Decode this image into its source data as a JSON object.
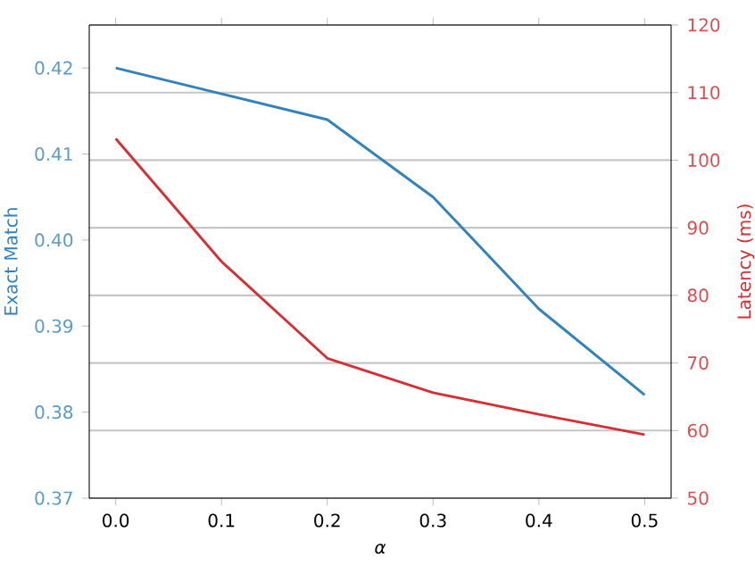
{
  "chart_data": {
    "type": "line",
    "xlabel": "α",
    "ylabel": "Exact Match",
    "y2label": "Latency (ms)",
    "x": [
      0,
      0.1,
      0.2,
      0.3,
      0.4,
      0.5
    ],
    "series": [
      {
        "color": "#3182bd",
        "values": [
          0.42,
          0.417,
          0.414,
          0.405,
          0.392,
          0.382
        ]
      },
      {
        "color": "#d62f34",
        "axis": "y2",
        "values": [
          103.2,
          85,
          70.7,
          65.6,
          62.4,
          59.4
        ]
      }
    ],
    "xlim": [
      -0.025,
      0.525
    ],
    "xticks": [
      {
        "value": 0,
        "label": "0.0"
      },
      {
        "value": 0.1,
        "label": "0.1"
      },
      {
        "value": 0.2,
        "label": "0.2"
      },
      {
        "value": 0.3,
        "label": "0.3"
      },
      {
        "value": 0.4,
        "label": "0.4"
      },
      {
        "value": 0.5,
        "label": "0.5"
      }
    ],
    "ylim": [
      0.37,
      0.425
    ],
    "yticks": [
      0.37,
      {
        "value": 0.38,
        "label": "0.38"
      },
      0.39,
      {
        "value": 0.4,
        "label": "0.40"
      },
      0.41,
      0.42
    ],
    "y2lim": [
      50,
      120
    ],
    "y2ticks": [
      50,
      60,
      70,
      80,
      90,
      100,
      110,
      120
    ],
    "grid": "y"
  }
}
